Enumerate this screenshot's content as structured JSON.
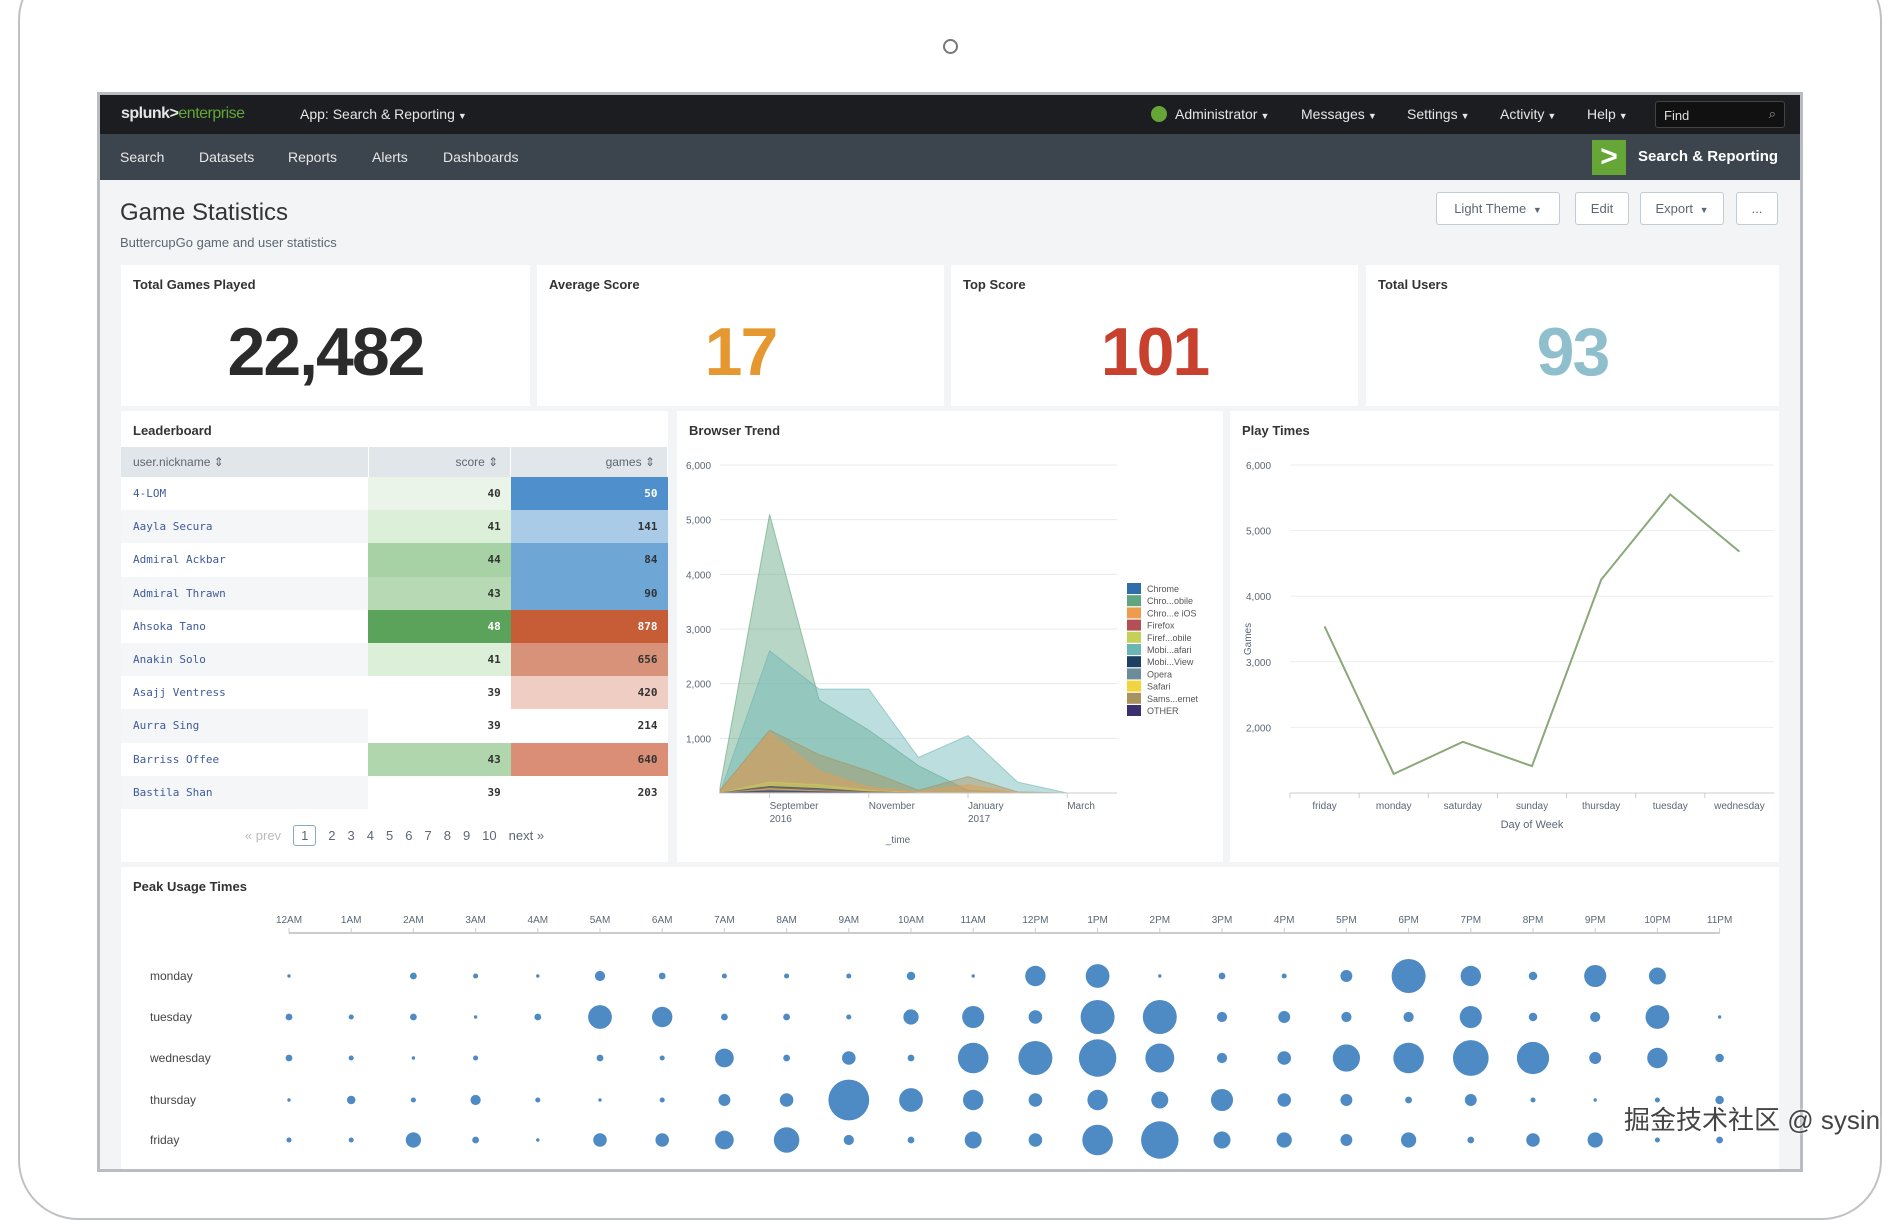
{
  "header": {
    "logo": "splunk>enterprise",
    "logo_main": "splunk>",
    "logo_accent": "enterprise",
    "app_menu": "App: Search & Reporting",
    "menus": [
      "Administrator",
      "Messages",
      "Settings",
      "Activity",
      "Help"
    ],
    "find_placeholder": "Find"
  },
  "appbar": {
    "nav": [
      "Search",
      "Datasets",
      "Reports",
      "Alerts",
      "Dashboards"
    ],
    "app_name": "Search & Reporting"
  },
  "dashboard": {
    "title": "Game Statistics",
    "description": "ButtercupGo game and user statistics",
    "buttons": {
      "theme": "Light Theme",
      "edit": "Edit",
      "export": "Export",
      "more": "..."
    }
  },
  "singles": [
    {
      "title": "Total Games Played",
      "value": "22,482",
      "color": "#2b2b2b"
    },
    {
      "title": "Average Score",
      "value": "17",
      "color": "#e5982f"
    },
    {
      "title": "Top Score",
      "value": "101",
      "color": "#c8412e"
    },
    {
      "title": "Total Users",
      "value": "93",
      "color": "#8fbfcc"
    }
  ],
  "leaderboard": {
    "title": "Leaderboard",
    "columns": [
      "user.nickname",
      "score",
      "games"
    ],
    "rows": [
      {
        "name": "4-LOM",
        "score": "40",
        "games": "50",
        "score_bg": "#eaf4e8",
        "games_bg": "#4f8fcb",
        "games_fg": "#ffffff"
      },
      {
        "name": "Aayla Secura",
        "score": "41",
        "games": "141",
        "score_bg": "#dcefd9",
        "games_bg": "#a9cbe8"
      },
      {
        "name": "Admiral Ackbar",
        "score": "44",
        "games": "84",
        "score_bg": "#a7d2a5",
        "games_bg": "#6ea6d6"
      },
      {
        "name": "Admiral Thrawn",
        "score": "43",
        "games": "90",
        "score_bg": "#b7dab4",
        "games_bg": "#6ea6d6"
      },
      {
        "name": "Ahsoka Tano",
        "score": "48",
        "games": "878",
        "score_bg": "#5ba35a",
        "score_fg": "#ffffff",
        "games_bg": "#c75d37",
        "games_fg": "#ffffff"
      },
      {
        "name": "Anakin Solo",
        "score": "41",
        "games": "656",
        "score_bg": "#dcefd9",
        "games_bg": "#d8927a"
      },
      {
        "name": "Asajj Ventress",
        "score": "39",
        "games": "420",
        "score_bg": "#ffffff",
        "games_bg": "#f0cdc2"
      },
      {
        "name": "Aurra Sing",
        "score": "39",
        "games": "214",
        "score_bg": "#ffffff",
        "games_bg": "#ffffff"
      },
      {
        "name": "Barriss Offee",
        "score": "43",
        "games": "640",
        "score_bg": "#b0d6ad",
        "games_bg": "#d98e75"
      },
      {
        "name": "Bastila Shan",
        "score": "39",
        "games": "203",
        "score_bg": "#ffffff",
        "games_bg": "#ffffff"
      }
    ],
    "pager": {
      "prev": "« prev",
      "pages": [
        "1",
        "2",
        "3",
        "4",
        "5",
        "6",
        "7",
        "8",
        "9",
        "10"
      ],
      "current": "1",
      "next": "next »"
    }
  },
  "chart_data": [
    {
      "type": "area",
      "title": "Browser Trend",
      "xlabel": "_time",
      "ylabel": "",
      "x": [
        "2016-08",
        "2016-09",
        "2016-10",
        "2016-11",
        "2016-12",
        "2017-01",
        "2017-02",
        "2017-03"
      ],
      "x_ticks": [
        {
          "at": "2016-09",
          "label": [
            "September",
            "2016"
          ]
        },
        {
          "at": "2016-11",
          "label": [
            "November"
          ]
        },
        {
          "at": "2017-01",
          "label": [
            "January",
            "2017"
          ]
        },
        {
          "at": "2017-03",
          "label": [
            "March"
          ]
        }
      ],
      "ylim": [
        0,
        6000
      ],
      "y_ticks": [
        "1,000",
        "2,000",
        "3,000",
        "4,000",
        "5,000",
        "6,000"
      ],
      "grid": true,
      "legend": "right",
      "series": [
        {
          "name": "Chrome",
          "color": "#2f6eaa",
          "values": [
            0,
            100,
            50,
            10,
            0,
            0,
            0,
            0
          ]
        },
        {
          "name": "Chro...obile",
          "color": "#5fa57f",
          "values": [
            100,
            5100,
            1700,
            1150,
            500,
            50,
            0,
            0
          ]
        },
        {
          "name": "Chro...e iOS",
          "color": "#ec9c4c",
          "values": [
            20,
            1100,
            400,
            100,
            20,
            150,
            0,
            0
          ]
        },
        {
          "name": "Firefox",
          "color": "#b44f55",
          "values": [
            0,
            100,
            50,
            20,
            0,
            0,
            0,
            0
          ]
        },
        {
          "name": "Firef...obile",
          "color": "#c4d058",
          "values": [
            0,
            200,
            150,
            50,
            0,
            0,
            0,
            0
          ]
        },
        {
          "name": "Mobi...afari",
          "color": "#6bb5b5",
          "values": [
            0,
            2600,
            1900,
            1900,
            650,
            1050,
            200,
            0
          ]
        },
        {
          "name": "Mobi...View",
          "color": "#1d3f63",
          "values": [
            0,
            120,
            80,
            20,
            0,
            0,
            0,
            0
          ]
        },
        {
          "name": "Opera",
          "color": "#6d8c9a",
          "values": [
            0,
            60,
            30,
            10,
            0,
            0,
            0,
            0
          ]
        },
        {
          "name": "Safari",
          "color": "#f2d53c",
          "values": [
            0,
            80,
            40,
            10,
            0,
            0,
            0,
            0
          ]
        },
        {
          "name": "Sams...ernet",
          "color": "#a8935f",
          "values": [
            50,
            1150,
            700,
            400,
            50,
            300,
            20,
            0
          ]
        },
        {
          "name": "OTHER",
          "color": "#3b2f6f",
          "values": [
            0,
            40,
            20,
            5,
            0,
            0,
            0,
            0
          ]
        }
      ]
    },
    {
      "type": "line",
      "title": "Play Times",
      "xlabel": "Day of Week",
      "ylabel": "Games",
      "categories": [
        "friday",
        "monday",
        "saturday",
        "sunday",
        "thursday",
        "tuesday",
        "wednesday"
      ],
      "values": [
        3540,
        1290,
        1780,
        1410,
        4250,
        5550,
        4680
      ],
      "ylim": [
        1000,
        6000
      ],
      "y_ticks": [
        "2,000",
        "3,000",
        "4,000",
        "5,000",
        "6,000"
      ],
      "color": "#8aa87a",
      "grid": true
    },
    {
      "type": "scatter",
      "title": "Peak Usage Times",
      "subtype": "bubble",
      "color": "#4e8ac4",
      "hours": [
        "12AM",
        "1AM",
        "2AM",
        "3AM",
        "4AM",
        "5AM",
        "6AM",
        "7AM",
        "8AM",
        "9AM",
        "10AM",
        "11AM",
        "12PM",
        "1PM",
        "2PM",
        "3PM",
        "4PM",
        "5PM",
        "6PM",
        "7PM",
        "8PM",
        "9PM",
        "10PM",
        "11PM"
      ],
      "days": [
        "monday",
        "tuesday",
        "wednesday",
        "thursday",
        "friday"
      ],
      "relative_size": [
        [
          1,
          0,
          2,
          1.5,
          1,
          3,
          2,
          1.5,
          1.5,
          1.5,
          2.5,
          1,
          6,
          7,
          1,
          2,
          1.5,
          3.5,
          10,
          6,
          2.5,
          6.5,
          5,
          0
        ],
        [
          2,
          1.5,
          2,
          1,
          2,
          7,
          6,
          2,
          2,
          1.5,
          4.5,
          6.5,
          4,
          10,
          10,
          3,
          3.5,
          3,
          3,
          6.5,
          2.5,
          3,
          7,
          1
        ],
        [
          2,
          1.5,
          1,
          1.5,
          0,
          2,
          1.5,
          5.5,
          2,
          4,
          2,
          9,
          10,
          11,
          8.5,
          3,
          4,
          8,
          9,
          10.5,
          9.5,
          3.5,
          6,
          2.5
        ],
        [
          1,
          2.5,
          1.5,
          3,
          1.5,
          1,
          1.5,
          3.5,
          4,
          12,
          7,
          6,
          4,
          6,
          5,
          6.5,
          4,
          3.5,
          2,
          3.5,
          1.5,
          1,
          1.5,
          2.5
        ],
        [
          1.5,
          1.5,
          4.5,
          2,
          1,
          4,
          4,
          5.5,
          7.5,
          3,
          2,
          5,
          4,
          9,
          11,
          5,
          4.5,
          3.5,
          4.5,
          2,
          4,
          4.5,
          1.5,
          2
        ]
      ]
    }
  ],
  "watermark": "掘金技术社区 @ sysin"
}
